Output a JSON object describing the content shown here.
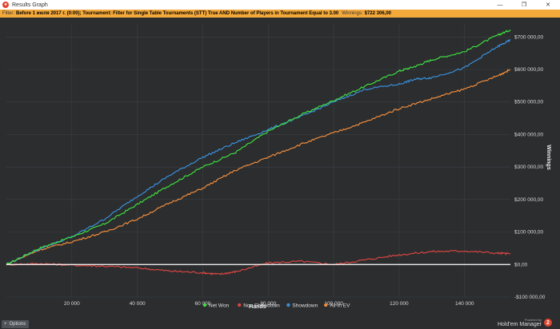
{
  "window": {
    "title": "Results Graph",
    "icon": "app-logo-icon",
    "controls": [
      "minimize-icon",
      "restore-icon",
      "close-icon"
    ]
  },
  "filter": {
    "label": "Filter:",
    "text": "Before 1 июля 2017 г. (0:00); Tournament: Filter for Single Table Tournaments (STT) True AND Number of Players in Tournament Equal to 3.00",
    "winnings_label": "Winnings:",
    "winnings_value": "$722 306,00"
  },
  "footer": {
    "options_label": "Options",
    "powered_by": "Powered by",
    "brand": "Hold'em Manager",
    "brand_logo": "2"
  },
  "colors": {
    "background": "#2b2d2f",
    "grid": "#3d4043",
    "filter_bar": "#f4a93b",
    "net_won": "#3fdc3f",
    "non_showdown": "#d64541",
    "showdown": "#3a8fd9",
    "all_in_ev": "#f08c3c",
    "zero_line": "#ffffff"
  },
  "chart_data": {
    "type": "line",
    "title": "",
    "xlabel": "Hands",
    "ylabel": "Winnings",
    "xlim": [
      0,
      154000
    ],
    "ylim": [
      -100000,
      740000
    ],
    "x_ticks": [
      20000,
      40000,
      60000,
      80000,
      100000,
      120000,
      140000
    ],
    "x_tick_labels": [
      "20 000",
      "40 000",
      "60 000",
      "80 000",
      "100 000",
      "120 000",
      "140 000"
    ],
    "y_ticks": [
      -100000,
      0,
      100000,
      200000,
      300000,
      400000,
      500000,
      600000,
      700000
    ],
    "y_tick_labels": [
      "-$100 000,00",
      "$0,00",
      "$100 000,00",
      "$200 000,00",
      "$300 000,00",
      "$400 000,00",
      "$500 000,00",
      "$600 000,00",
      "$700 000,00"
    ],
    "grid": true,
    "legend_position": "bottom-center",
    "series": [
      {
        "name": "Net Won",
        "color": "#3fdc3f",
        "x": [
          0,
          10000,
          20000,
          30000,
          40000,
          50000,
          60000,
          70000,
          80000,
          90000,
          100000,
          110000,
          120000,
          125000,
          130000,
          140000,
          150000,
          154000
        ],
        "y": [
          0,
          50000,
          85000,
          125000,
          185000,
          245000,
          300000,
          345000,
          410000,
          460000,
          505000,
          550000,
          595000,
          610000,
          630000,
          655000,
          705000,
          722000
        ]
      },
      {
        "name": "Non Showdown",
        "color": "#d64541",
        "x": [
          0,
          10000,
          20000,
          30000,
          40000,
          50000,
          60000,
          65000,
          70000,
          80000,
          90000,
          100000,
          110000,
          120000,
          130000,
          140000,
          150000,
          154000
        ],
        "y": [
          0,
          3000,
          -2000,
          -5000,
          -10000,
          -20000,
          -25000,
          -30000,
          -22000,
          5000,
          10000,
          0,
          15000,
          30000,
          40000,
          42000,
          35000,
          33000
        ]
      },
      {
        "name": "Showdown",
        "color": "#3a8fd9",
        "x": [
          0,
          10000,
          20000,
          30000,
          40000,
          50000,
          60000,
          70000,
          80000,
          90000,
          100000,
          110000,
          120000,
          125000,
          130000,
          140000,
          150000,
          154000
        ],
        "y": [
          0,
          48000,
          85000,
          140000,
          210000,
          275000,
          330000,
          375000,
          415000,
          455000,
          500000,
          540000,
          555000,
          570000,
          575000,
          605000,
          670000,
          690000
        ]
      },
      {
        "name": "All-In EV",
        "color": "#f08c3c",
        "x": [
          0,
          10000,
          20000,
          30000,
          40000,
          50000,
          60000,
          70000,
          80000,
          90000,
          100000,
          110000,
          120000,
          130000,
          140000,
          150000,
          154000
        ],
        "y": [
          0,
          45000,
          70000,
          100000,
          140000,
          190000,
          235000,
          290000,
          330000,
          370000,
          405000,
          440000,
          480000,
          510000,
          540000,
          580000,
          600000
        ]
      }
    ],
    "zero_line": {
      "y": 0,
      "color": "#ffffff"
    }
  }
}
